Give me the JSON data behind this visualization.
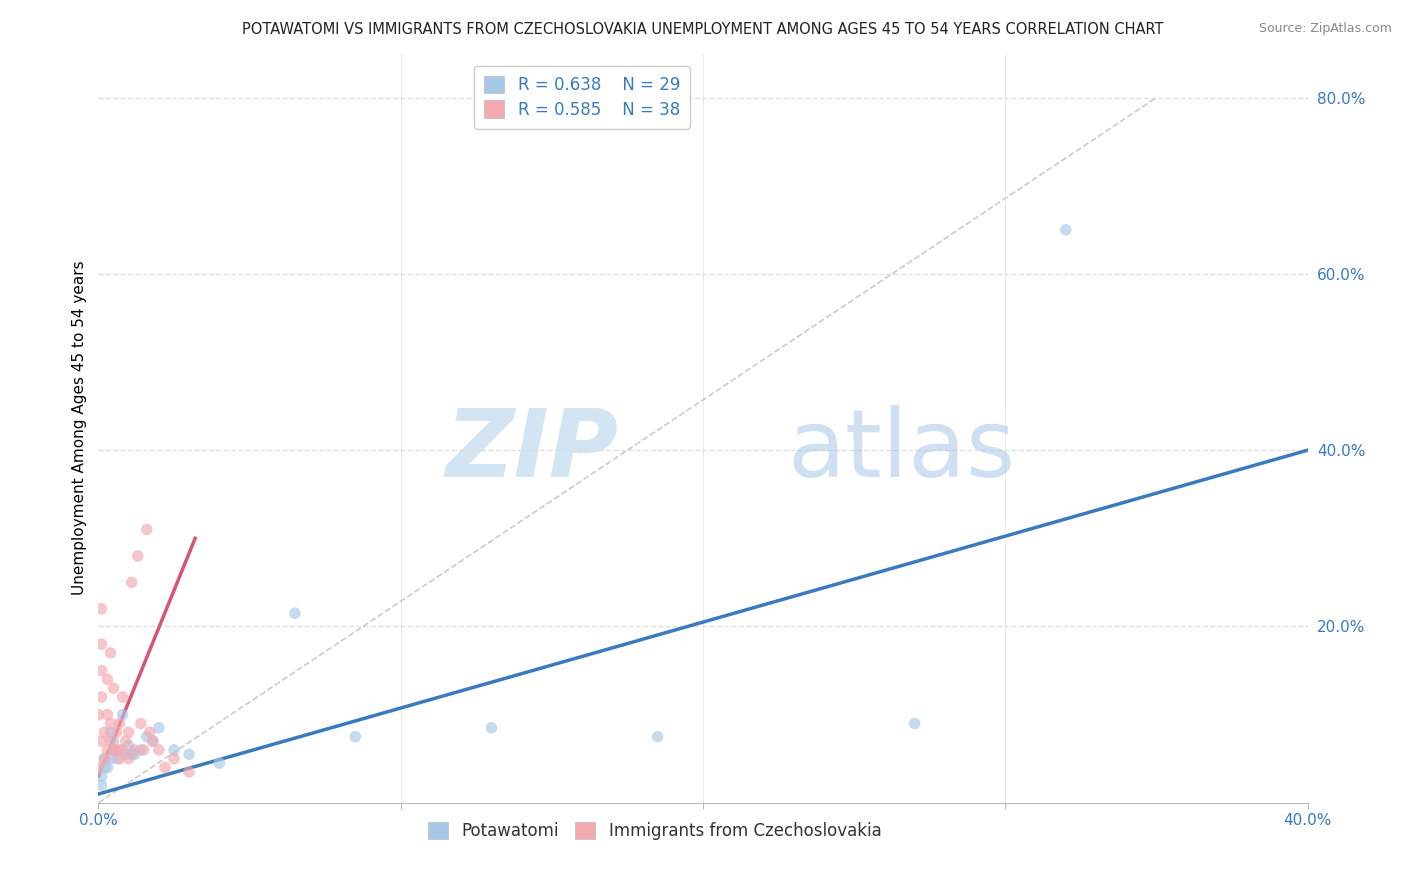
{
  "title": "POTAWATOMI VS IMMIGRANTS FROM CZECHOSLOVAKIA UNEMPLOYMENT AMONG AGES 45 TO 54 YEARS CORRELATION CHART",
  "source": "Source: ZipAtlas.com",
  "ylabel": "Unemployment Among Ages 45 to 54 years",
  "xlim": [
    0.0,
    0.4
  ],
  "ylim": [
    0.0,
    0.85
  ],
  "xticks": [
    0.0,
    0.1,
    0.2,
    0.3,
    0.4
  ],
  "xticklabels_sparse": [
    "0.0%",
    "",
    "",
    "",
    "40.0%"
  ],
  "yticks": [
    0.2,
    0.4,
    0.6,
    0.8
  ],
  "yticklabels": [
    "20.0%",
    "40.0%",
    "60.0%",
    "80.0%"
  ],
  "watermark_zip": "ZIP",
  "watermark_atlas": "atlas",
  "legend_r1": "R = 0.638",
  "legend_n1": "N = 29",
  "legend_r2": "R = 0.585",
  "legend_n2": "N = 38",
  "blue_color": "#a8c8e8",
  "pink_color": "#f4a8b0",
  "blue_line_color": "#3a7abf",
  "pink_line_color": "#d9546e",
  "dash_line_color": "#cccccc",
  "tick_color": "#3a7abf",
  "potawatomi_x": [
    0.001,
    0.001,
    0.002,
    0.002,
    0.003,
    0.004,
    0.004,
    0.005,
    0.005,
    0.006,
    0.007,
    0.008,
    0.009,
    0.01,
    0.011,
    0.012,
    0.014,
    0.016,
    0.018,
    0.02,
    0.025,
    0.03,
    0.04,
    0.065,
    0.085,
    0.13,
    0.185,
    0.27,
    0.32
  ],
  "potawatomi_y": [
    0.02,
    0.03,
    0.04,
    0.05,
    0.04,
    0.05,
    0.08,
    0.06,
    0.07,
    0.05,
    0.06,
    0.1,
    0.055,
    0.065,
    0.055,
    0.055,
    0.06,
    0.075,
    0.07,
    0.085,
    0.06,
    0.055,
    0.045,
    0.215,
    0.075,
    0.085,
    0.075,
    0.09,
    0.65
  ],
  "czech_x": [
    0.0,
    0.0,
    0.001,
    0.001,
    0.001,
    0.001,
    0.001,
    0.002,
    0.002,
    0.003,
    0.003,
    0.003,
    0.004,
    0.004,
    0.004,
    0.005,
    0.005,
    0.006,
    0.006,
    0.007,
    0.007,
    0.008,
    0.008,
    0.009,
    0.01,
    0.01,
    0.011,
    0.012,
    0.013,
    0.014,
    0.015,
    0.016,
    0.017,
    0.018,
    0.02,
    0.022,
    0.025,
    0.03
  ],
  "czech_y": [
    0.04,
    0.1,
    0.07,
    0.12,
    0.15,
    0.18,
    0.22,
    0.05,
    0.08,
    0.06,
    0.1,
    0.14,
    0.07,
    0.09,
    0.17,
    0.06,
    0.13,
    0.06,
    0.08,
    0.05,
    0.09,
    0.06,
    0.12,
    0.07,
    0.05,
    0.08,
    0.25,
    0.06,
    0.28,
    0.09,
    0.06,
    0.31,
    0.08,
    0.07,
    0.06,
    0.04,
    0.05,
    0.035
  ],
  "blue_trendline_x": [
    0.0,
    0.4
  ],
  "blue_trendline_y": [
    0.01,
    0.4
  ],
  "pink_trendline_x": [
    0.0,
    0.032
  ],
  "pink_trendline_y": [
    0.03,
    0.3
  ],
  "diag_line_x": [
    0.0,
    0.35
  ],
  "diag_line_y": [
    0.0,
    0.8
  ],
  "grid_yticks": [
    0.2,
    0.4,
    0.6,
    0.8
  ],
  "grid_xticks": [
    0.1,
    0.2,
    0.3
  ],
  "grid_color": "#e0e0e0",
  "bg_color": "#ffffff",
  "title_fontsize": 10.5,
  "axis_label_fontsize": 11,
  "tick_fontsize": 11,
  "marker_size": 70
}
